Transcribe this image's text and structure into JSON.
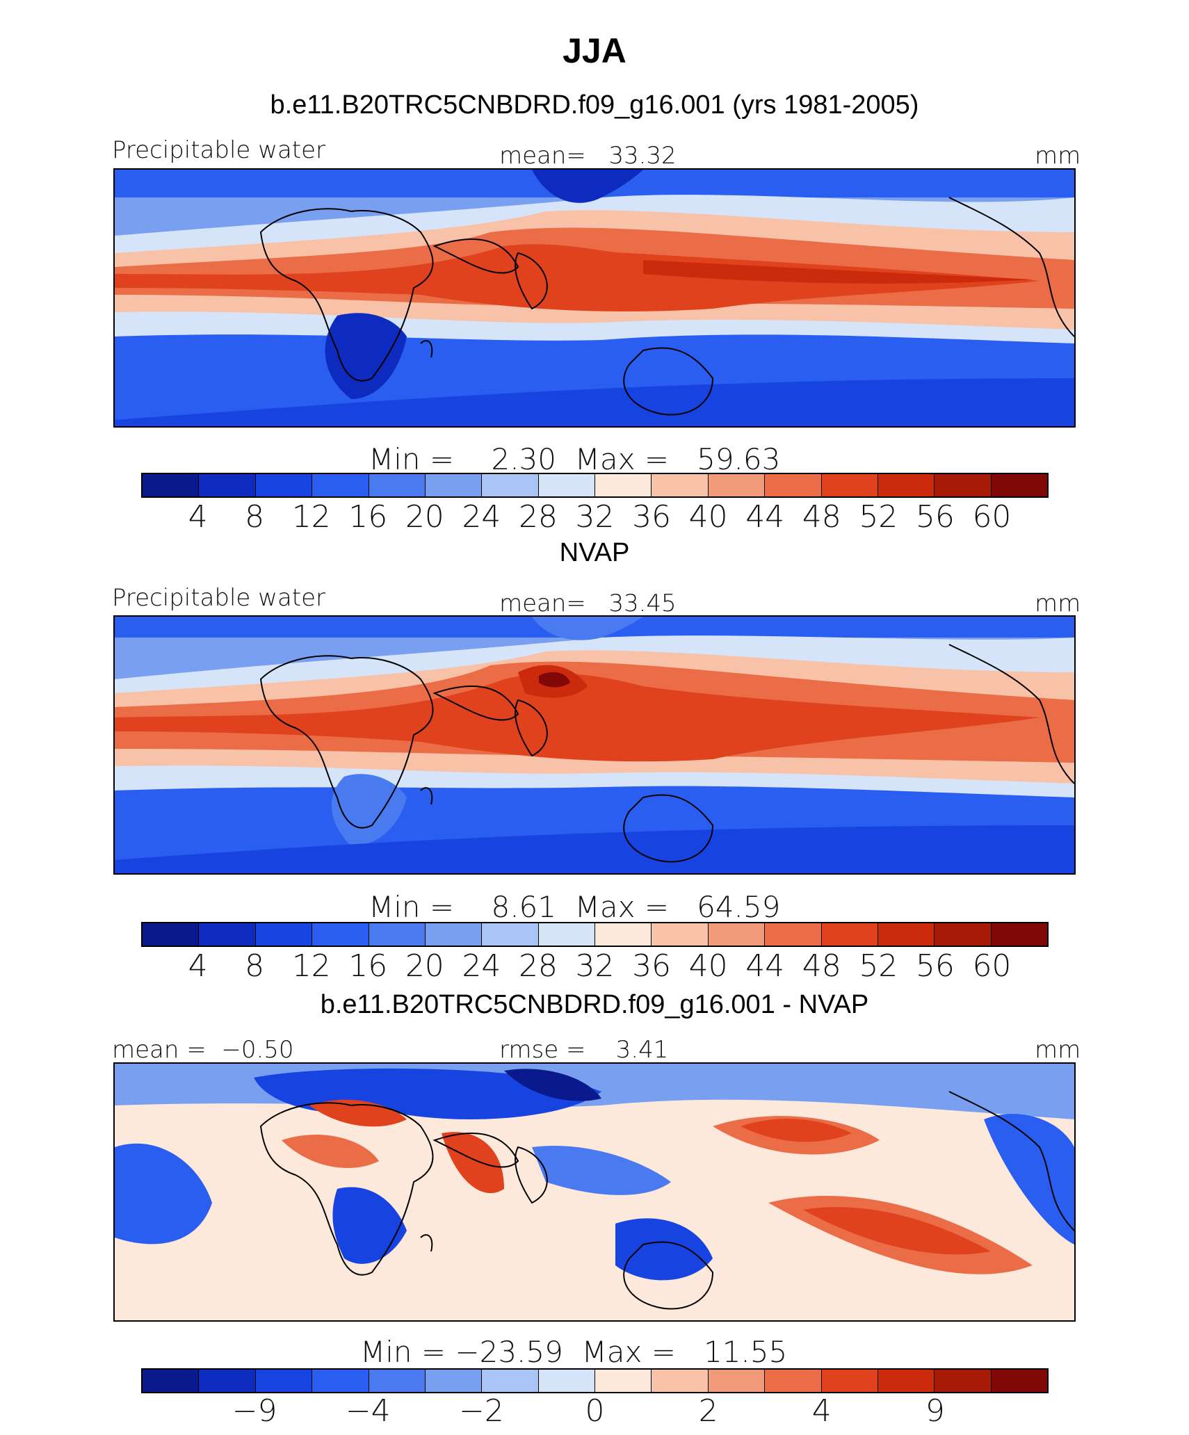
{
  "title": "JJA",
  "colorbar_colors": [
    "#0a1a8c",
    "#0d2bbf",
    "#1744e0",
    "#2a5ef0",
    "#4a7af0",
    "#789ff0",
    "#a9c4f5",
    "#d6e4fa",
    "#fde9dc",
    "#f8c2a8",
    "#f19a78",
    "#ea6d48",
    "#e0421e",
    "#cb2a0c",
    "#a81a08",
    "#800806"
  ],
  "panels": [
    {
      "heading": "b.e11.B20TRC5CNBDRD.f09_g16.001 (yrs 1981-2005)",
      "left_label": "Precipitable water",
      "center_label": "mean=   33.32",
      "right_label": "mm",
      "min_max": "Min =    2.30  Max =   59.63",
      "colorbar_labels": [
        "4",
        "8",
        "12",
        "16",
        "20",
        "24",
        "28",
        "32",
        "36",
        "40",
        "44",
        "48",
        "52",
        "56",
        "60"
      ],
      "min": 2.3,
      "max": 59.63,
      "mean": 33.32
    },
    {
      "heading": "NVAP",
      "left_label": "Precipitable water",
      "center_label": "mean=   33.45",
      "right_label": "mm",
      "min_max": "Min =    8.61  Max =   64.59",
      "colorbar_labels": [
        "4",
        "8",
        "12",
        "16",
        "20",
        "24",
        "28",
        "32",
        "36",
        "40",
        "44",
        "48",
        "52",
        "56",
        "60"
      ],
      "min": 8.61,
      "max": 64.59,
      "mean": 33.45
    },
    {
      "heading": "b.e11.B20TRC5CNBDRD.f09_g16.001 - NVAP",
      "left_label": "mean =  −0.50",
      "center_label": "rmse =    3.41",
      "right_label": "mm",
      "min_max": "Min = −23.59  Max =   11.55",
      "colorbar_labels": [
        "−9",
        "−4",
        "−2",
        "0",
        "2",
        "4",
        "9"
      ],
      "min": -23.59,
      "max": 11.55,
      "mean": -0.5,
      "rmse": 3.41
    }
  ]
}
